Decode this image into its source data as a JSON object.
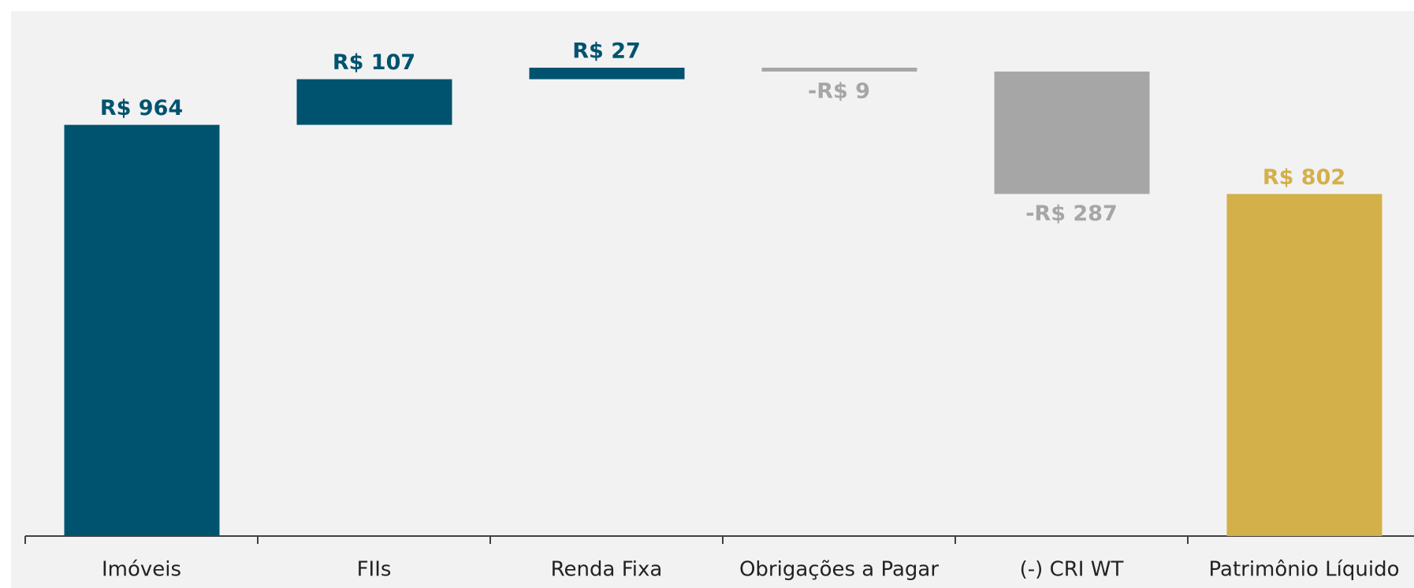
{
  "chart_data": {
    "type": "waterfall",
    "categories": [
      "Imóveis",
      "FIIs",
      "Renda Fixa",
      "Obrigações a Pagar",
      "(-) CRI WT",
      "Patrimônio Líquido"
    ],
    "values": [
      964,
      107,
      27,
      -9,
      -287,
      802
    ],
    "value_labels": [
      "R$ 964",
      "R$ 107",
      "R$ 27",
      "-R$ 9",
      "-R$ 287",
      "R$ 802"
    ],
    "measures": [
      "relative",
      "relative",
      "relative",
      "relative",
      "relative",
      "total"
    ],
    "colors": {
      "increase": "#00536f",
      "decrease": "#a6a6a6",
      "total": "#d4b04a"
    }
  }
}
